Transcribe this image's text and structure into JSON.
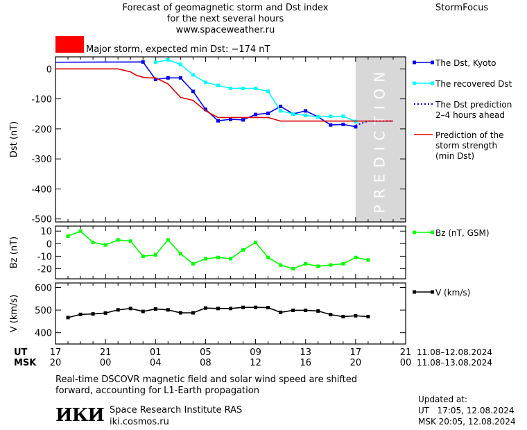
{
  "header": {
    "title_lines": [
      "Forecast of geomagnetic storm and Dst index",
      "for the next several hours",
      "www.spaceweather.ru"
    ],
    "brand": "StormFocus"
  },
  "storm_status": {
    "text": "Major storm, expected min Dst: −174 nT",
    "color": "#ff0000"
  },
  "prediction_band_label": "PREDICTION",
  "time_axis": {
    "ut_label": "UT",
    "msk_label": "MSK",
    "ut_ticks": [
      "17",
      "21",
      "01",
      "05",
      "09",
      "13",
      "17",
      "21"
    ],
    "msk_ticks": [
      "20",
      "00",
      "04",
      "08",
      "12",
      "16",
      "20",
      "00"
    ],
    "ut_range": "11.08–12.08.2024",
    "msk_range": "11.08–13.08.2024"
  },
  "legend": {
    "dst_kyoto": "The Dst, Kyoto",
    "dst_recovered": "The recovered Dst",
    "dst_prediction": [
      "The Dst prediction",
      "2–4 hours ahead"
    ],
    "storm_prediction": [
      "Prediction of the",
      "storm strength",
      "(min Dst)"
    ],
    "bz": "Bz (nT, GSM)",
    "v": "V (km/s)"
  },
  "footer": {
    "note_lines": [
      "Real-time DSCOVR magnetic field and solar wind speed are shifted",
      "forward, accounting for L1-Earth propagation"
    ],
    "institute_logo": "ИКИ",
    "institute_name": "Space Research Institute RAS",
    "institute_site": "iki.cosmos.ru",
    "updated_label": "Updated at:",
    "updated_ut": "UT   17:05, 12.08.2024",
    "updated_msk": "MSK 20:05, 12.08.2024"
  },
  "colors": {
    "dst_kyoto": "#0000ee",
    "dst_recovered": "#00ffff",
    "dst_prediction": "#0000ee",
    "storm_prediction": "#dd0000",
    "bz": "#00ff00",
    "v": "#000000",
    "prediction_band": "#d8d8d8"
  },
  "chart_data": [
    {
      "type": "line",
      "panel": "dst",
      "ylabel": "Dst (nT)",
      "x_unit": "hours from 17 UT on 11.08.2024",
      "xlim": [
        0,
        28
      ],
      "ylim": [
        -510,
        40
      ],
      "yticks": [
        0,
        -100,
        -200,
        -300,
        -400,
        -500
      ],
      "yticklabels": [
        "0",
        "-100",
        "-200",
        "-300",
        "-400",
        "-500"
      ],
      "prediction_band_x": [
        24,
        28
      ],
      "series": [
        {
          "key": "dst_kyoto",
          "name": "The Dst, Kyoto",
          "x": [
            -0.5,
            7,
            8,
            9,
            10,
            11,
            12,
            13,
            14,
            15,
            16,
            17,
            18,
            19,
            20,
            21,
            22,
            23,
            24
          ],
          "y": [
            22,
            23,
            -35,
            -30,
            -30,
            -75,
            -135,
            -173,
            -168,
            -170,
            -152,
            -148,
            -125,
            -150,
            -140,
            -160,
            -187,
            -185,
            -193
          ],
          "markers": true
        },
        {
          "key": "dst_recovered",
          "name": "The recovered Dst",
          "x": [
            8,
            9,
            10,
            11,
            12,
            13,
            14,
            15,
            16,
            17,
            18,
            19,
            20,
            21,
            22,
            23,
            24
          ],
          "y": [
            22,
            30,
            15,
            -20,
            -45,
            -55,
            -65,
            -65,
            -65,
            -75,
            -140,
            -150,
            -155,
            -160,
            -158,
            -158,
            -175
          ],
          "markers": true
        },
        {
          "key": "dst_prediction",
          "name": "The Dst prediction 2–4 hours ahead",
          "x": [
            24,
            25,
            26,
            27
          ],
          "y": [
            -188,
            -174,
            -174,
            -174
          ],
          "dashed": true
        },
        {
          "key": "storm_prediction",
          "name": "Prediction of the storm strength (min Dst)",
          "x": [
            0,
            5,
            6,
            6.5,
            7,
            7.5,
            8,
            9,
            10,
            11,
            12,
            13,
            14,
            15,
            16,
            17,
            18,
            19,
            20,
            21,
            22,
            23,
            24,
            27
          ],
          "y": [
            0,
            0,
            -10,
            -22,
            -28,
            -30,
            -30,
            -50,
            -95,
            -105,
            -140,
            -162,
            -162,
            -162,
            -162,
            -162,
            -174,
            -174,
            -174,
            -174,
            -174,
            -174,
            -174,
            -174
          ]
        }
      ]
    },
    {
      "type": "line",
      "panel": "bz",
      "ylabel": "Bz (nT)",
      "xlim": [
        0,
        28
      ],
      "ylim": [
        -28,
        14
      ],
      "yticks": [
        10,
        0,
        -10,
        -20
      ],
      "yticklabels": [
        "10",
        "0",
        "-10",
        "-20"
      ],
      "series": [
        {
          "key": "bz",
          "name": "Bz (nT, GSM)",
          "x": [
            1,
            2,
            3,
            4,
            5,
            6,
            7,
            8,
            9,
            10,
            11,
            12,
            13,
            14,
            15,
            16,
            17,
            18,
            19,
            20,
            21,
            22,
            23,
            24,
            25
          ],
          "y": [
            6,
            10,
            1,
            -1,
            3,
            2,
            -10,
            -9,
            3,
            -8,
            -16,
            -12,
            -11,
            -12,
            -5,
            1,
            -11,
            -17,
            -20,
            -16,
            -18,
            -17,
            -16,
            -11,
            -13
          ],
          "markers": true
        }
      ]
    },
    {
      "type": "line",
      "panel": "v",
      "ylabel": "V (km/s)",
      "xlim": [
        0,
        28
      ],
      "ylim": [
        350,
        620
      ],
      "yticks": [
        600,
        500,
        400
      ],
      "yticklabels": [
        "600",
        "500",
        "400"
      ],
      "series": [
        {
          "key": "v",
          "name": "V (km/s)",
          "x": [
            1,
            2,
            3,
            4,
            5,
            6,
            7,
            8,
            9,
            10,
            11,
            12,
            13,
            14,
            15,
            16,
            17,
            18,
            19,
            20,
            21,
            22,
            23,
            24,
            25
          ],
          "y": [
            467,
            481,
            483,
            487,
            501,
            507,
            494,
            505,
            501,
            488,
            488,
            509,
            507,
            507,
            512,
            512,
            511,
            490,
            499,
            499,
            496,
            480,
            471,
            475,
            471
          ],
          "markers": true
        }
      ]
    }
  ]
}
